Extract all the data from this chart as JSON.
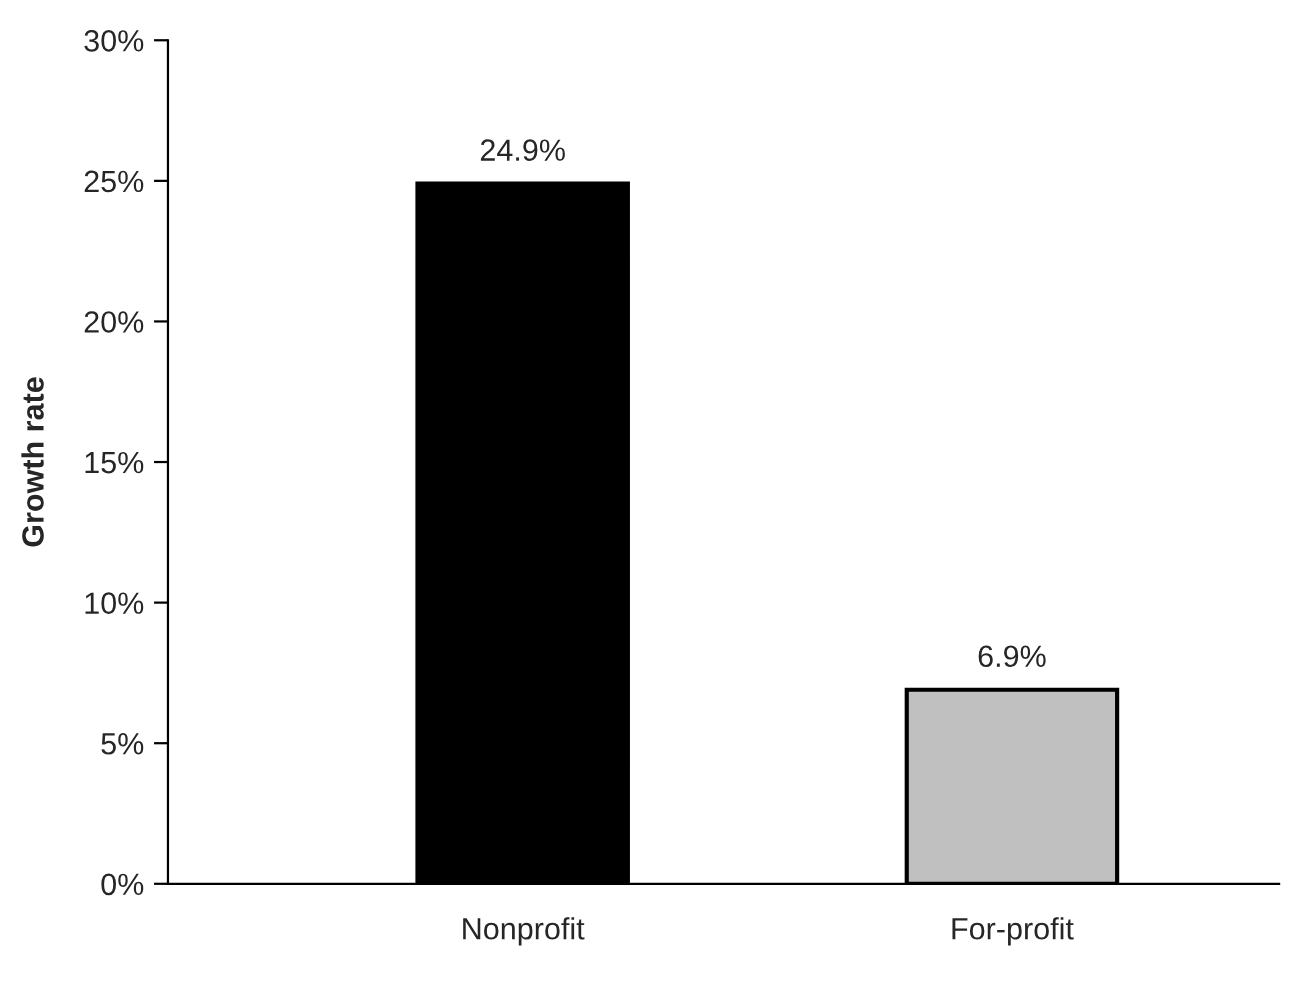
{
  "chart_data": {
    "type": "bar",
    "ylabel": "Growth rate",
    "categories": [
      "Nonprofit",
      "For-profit"
    ],
    "values": [
      24.9,
      6.9
    ],
    "colors": [
      "#000000",
      "#c0c0c0"
    ],
    "value_labels": [
      "24.9%",
      "6.9%"
    ],
    "ylim": [
      0,
      30
    ],
    "yticks": [
      {
        "value": 0,
        "label": "0%"
      },
      {
        "value": 5,
        "label": "5%"
      },
      {
        "value": 10,
        "label": "10%"
      },
      {
        "value": 15,
        "label": "15%"
      },
      {
        "value": 20,
        "label": "20%"
      },
      {
        "value": 25,
        "label": "25%"
      },
      {
        "value": 30,
        "label": "30%"
      }
    ],
    "grid": false,
    "legend": false
  }
}
